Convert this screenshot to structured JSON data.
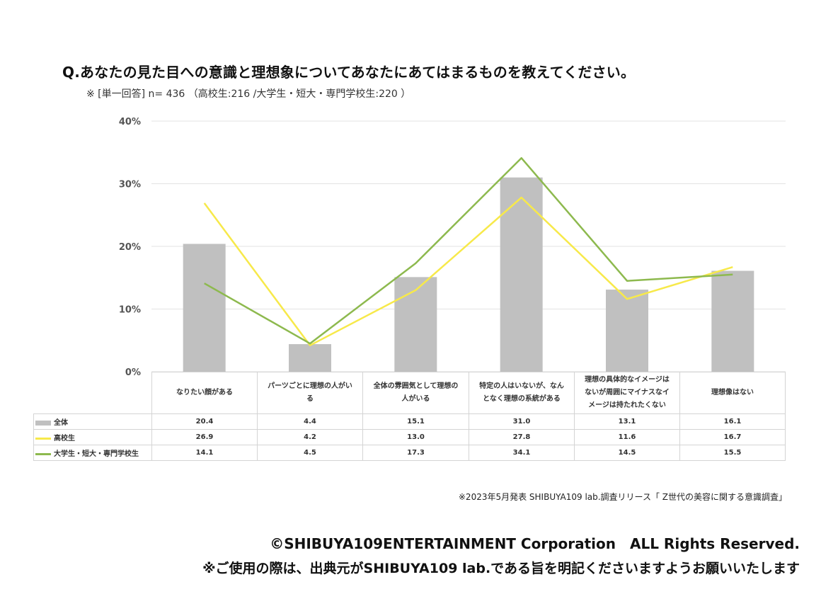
{
  "title": "Q.あなたの見た目への意識と理想象についてあなたにあてはまるものを教えてください。",
  "subtitle": "※ [単一回答] n= 436 （高校生:216 /大学生・短大・専門学校生:220 ）",
  "colors": {
    "bar": "#c0c0c0",
    "line_high": "#f7e94a",
    "line_univ": "#8db94e",
    "grid": "#e3e3e3"
  },
  "chart_data": {
    "type": "bar",
    "categories": [
      "なりたい顔がある",
      "パーツごとに理想の人がいる",
      "全体の雰囲気として理想の人がいる",
      "特定の人はいないが、なんとなく理想の系統がある",
      "理想の具体的なイメージはないが周囲にマイナスなイメージは持たれたくない",
      "理想像はない"
    ],
    "category_lines": [
      [
        "なりたい顔がある"
      ],
      [
        "パーツごとに理想の人がい",
        "る"
      ],
      [
        "全体の雰囲気として理想の",
        "人がいる"
      ],
      [
        "特定の人はいないが、なん",
        "となく理想の系統がある"
      ],
      [
        "理想の具体的なイメージは",
        "ないが周囲にマイナスなイ",
        "メージは持たれたくない"
      ],
      [
        "理想像はない"
      ]
    ],
    "series": [
      {
        "name": "全体",
        "type": "bar",
        "values": [
          20.4,
          4.4,
          15.1,
          31.0,
          13.1,
          16.1
        ]
      },
      {
        "name": "高校生",
        "type": "line",
        "values": [
          26.9,
          4.2,
          13.0,
          27.8,
          11.6,
          16.7
        ]
      },
      {
        "name": "大学生・短大・専門学校生",
        "type": "line",
        "values": [
          14.1,
          4.5,
          17.3,
          34.1,
          14.5,
          15.5
        ]
      }
    ],
    "ylim": [
      0,
      40
    ],
    "yticks": [
      0,
      10,
      20,
      30,
      40
    ],
    "ytick_labels": [
      "0%",
      "10%",
      "20%",
      "30%",
      "40%"
    ],
    "value_labels": [
      [
        "20.4",
        "4.4",
        "15.1",
        "31.0",
        "13.1",
        "16.1"
      ],
      [
        "26.9",
        "4.2",
        "13.0",
        "27.8",
        "11.6",
        "16.7"
      ],
      [
        "14.1",
        "4.5",
        "17.3",
        "34.1",
        "14.5",
        "15.5"
      ]
    ],
    "grid": true,
    "legend": "data table"
  },
  "footer": {
    "note": "※2023年5月発表 SHIBUYA109 lab.調査リリース「 Z世代の美容に関する意識調査」",
    "copyright": "©SHIBUYA109ENTERTAINMENT Corporation　ALL Rights Reserved.",
    "usage": "※ご使用の際は、出典元がSHIBUYA109 lab.である旨を明記くださいますようお願いいたします"
  }
}
